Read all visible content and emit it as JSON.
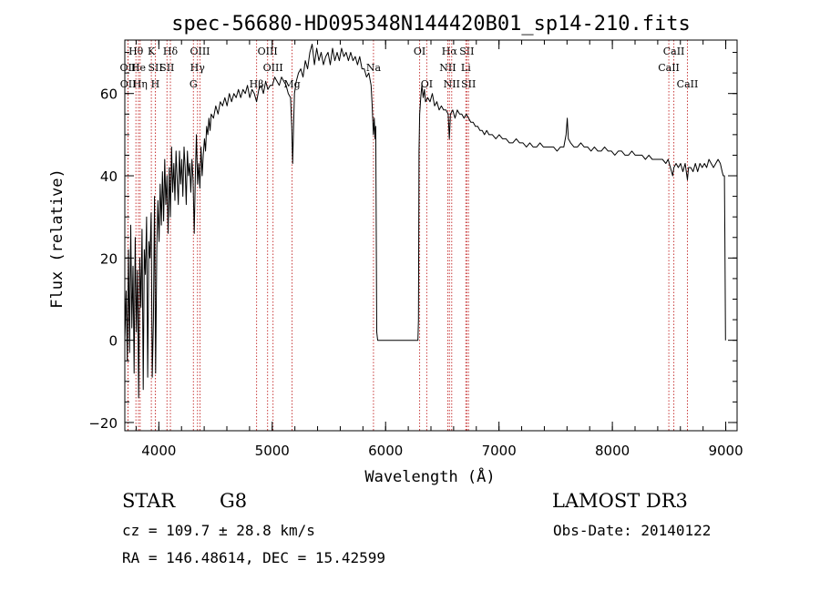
{
  "chart_data": {
    "type": "line",
    "title": "spec-56680-HD095348N144420B01_sp14-210.fits",
    "xlabel": "Wavelength (Å)",
    "ylabel": "Flux (relative)",
    "xlim": [
      3700,
      9100
    ],
    "ylim": [
      -22,
      73
    ],
    "x_ticks": [
      4000,
      5000,
      6000,
      7000,
      8000,
      9000
    ],
    "y_ticks": [
      -20,
      0,
      20,
      40,
      60
    ],
    "x_minor_step": 200,
    "y_minor_step": 5,
    "series": [
      {
        "name": "flux",
        "points": [
          [
            3700,
            0
          ],
          [
            3712,
            12
          ],
          [
            3722,
            -5
          ],
          [
            3732,
            22
          ],
          [
            3742,
            -3
          ],
          [
            3752,
            28
          ],
          [
            3762,
            3
          ],
          [
            3772,
            18
          ],
          [
            3782,
            -8
          ],
          [
            3792,
            25
          ],
          [
            3802,
            2
          ],
          [
            3812,
            17
          ],
          [
            3822,
            -14
          ],
          [
            3832,
            20
          ],
          [
            3842,
            8
          ],
          [
            3852,
            27
          ],
          [
            3862,
            -12
          ],
          [
            3872,
            22
          ],
          [
            3882,
            16
          ],
          [
            3892,
            30
          ],
          [
            3902,
            -9
          ],
          [
            3912,
            24
          ],
          [
            3922,
            20
          ],
          [
            3932,
            31
          ],
          [
            3942,
            -9
          ],
          [
            3952,
            5
          ],
          [
            3962,
            35
          ],
          [
            3972,
            -8
          ],
          [
            3982,
            22
          ],
          [
            3992,
            34
          ],
          [
            4002,
            24
          ],
          [
            4012,
            38
          ],
          [
            4022,
            28
          ],
          [
            4032,
            41
          ],
          [
            4042,
            29
          ],
          [
            4052,
            44
          ],
          [
            4062,
            33
          ],
          [
            4072,
            40
          ],
          [
            4082,
            26
          ],
          [
            4092,
            42
          ],
          [
            4102,
            30
          ],
          [
            4112,
            47
          ],
          [
            4122,
            36
          ],
          [
            4132,
            43
          ],
          [
            4142,
            34
          ],
          [
            4152,
            46
          ],
          [
            4162,
            39
          ],
          [
            4172,
            33
          ],
          [
            4182,
            46
          ],
          [
            4192,
            38
          ],
          [
            4202,
            44
          ],
          [
            4212,
            35
          ],
          [
            4222,
            47
          ],
          [
            4232,
            42
          ],
          [
            4242,
            33
          ],
          [
            4252,
            46
          ],
          [
            4262,
            40
          ],
          [
            4272,
            43
          ],
          [
            4282,
            36
          ],
          [
            4292,
            44
          ],
          [
            4302,
            39
          ],
          [
            4312,
            26
          ],
          [
            4322,
            40
          ],
          [
            4332,
            50
          ],
          [
            4342,
            38
          ],
          [
            4352,
            43
          ],
          [
            4362,
            37
          ],
          [
            4372,
            47
          ],
          [
            4382,
            40
          ],
          [
            4392,
            45
          ],
          [
            4402,
            49
          ],
          [
            4412,
            46
          ],
          [
            4422,
            52
          ],
          [
            4432,
            50
          ],
          [
            4442,
            54
          ],
          [
            4452,
            51
          ],
          [
            4462,
            55
          ],
          [
            4482,
            54
          ],
          [
            4502,
            57
          ],
          [
            4522,
            55
          ],
          [
            4542,
            58
          ],
          [
            4562,
            57
          ],
          [
            4582,
            59
          ],
          [
            4602,
            57
          ],
          [
            4622,
            60
          ],
          [
            4642,
            58
          ],
          [
            4662,
            60
          ],
          [
            4682,
            59
          ],
          [
            4702,
            61
          ],
          [
            4722,
            59
          ],
          [
            4742,
            61
          ],
          [
            4762,
            60
          ],
          [
            4782,
            62
          ],
          [
            4802,
            59
          ],
          [
            4822,
            61
          ],
          [
            4842,
            60
          ],
          [
            4862,
            58
          ],
          [
            4882,
            61
          ],
          [
            4902,
            62
          ],
          [
            4922,
            60
          ],
          [
            4942,
            63
          ],
          [
            4962,
            61
          ],
          [
            4982,
            62
          ],
          [
            5002,
            62
          ],
          [
            5022,
            64
          ],
          [
            5042,
            63
          ],
          [
            5062,
            62
          ],
          [
            5082,
            64
          ],
          [
            5102,
            63
          ],
          [
            5122,
            62
          ],
          [
            5142,
            60
          ],
          [
            5162,
            59
          ],
          [
            5172,
            52
          ],
          [
            5180,
            43
          ],
          [
            5188,
            52
          ],
          [
            5196,
            60
          ],
          [
            5212,
            63
          ],
          [
            5232,
            65
          ],
          [
            5252,
            66
          ],
          [
            5272,
            64
          ],
          [
            5292,
            68
          ],
          [
            5312,
            66
          ],
          [
            5332,
            70
          ],
          [
            5352,
            72
          ],
          [
            5372,
            67
          ],
          [
            5392,
            71
          ],
          [
            5412,
            68
          ],
          [
            5432,
            70
          ],
          [
            5452,
            67
          ],
          [
            5472,
            69
          ],
          [
            5492,
            70
          ],
          [
            5512,
            67
          ],
          [
            5532,
            71
          ],
          [
            5552,
            68
          ],
          [
            5572,
            70
          ],
          [
            5592,
            68
          ],
          [
            5612,
            71
          ],
          [
            5632,
            69
          ],
          [
            5652,
            70
          ],
          [
            5672,
            68
          ],
          [
            5692,
            70
          ],
          [
            5712,
            68
          ],
          [
            5732,
            69
          ],
          [
            5752,
            67
          ],
          [
            5772,
            69
          ],
          [
            5792,
            66
          ],
          [
            5812,
            66
          ],
          [
            5832,
            64
          ],
          [
            5852,
            65
          ],
          [
            5872,
            62
          ],
          [
            5882,
            57
          ],
          [
            5892,
            50
          ],
          [
            5900,
            54
          ],
          [
            5907,
            49
          ],
          [
            5913,
            52
          ],
          [
            5922,
            2
          ],
          [
            5930,
            0
          ],
          [
            6000,
            0
          ],
          [
            6100,
            0
          ],
          [
            6200,
            0
          ],
          [
            6285,
            0
          ],
          [
            6290,
            5
          ],
          [
            6295,
            46
          ],
          [
            6300,
            55
          ],
          [
            6310,
            59
          ],
          [
            6320,
            62
          ],
          [
            6332,
            59
          ],
          [
            6342,
            61
          ],
          [
            6352,
            58
          ],
          [
            6372,
            59
          ],
          [
            6392,
            58
          ],
          [
            6412,
            60
          ],
          [
            6432,
            57
          ],
          [
            6452,
            58
          ],
          [
            6472,
            56
          ],
          [
            6492,
            57
          ],
          [
            6512,
            56
          ],
          [
            6532,
            56
          ],
          [
            6552,
            55
          ],
          [
            6562,
            49
          ],
          [
            6572,
            55
          ],
          [
            6592,
            56
          ],
          [
            6612,
            54
          ],
          [
            6632,
            56
          ],
          [
            6652,
            55
          ],
          [
            6672,
            55
          ],
          [
            6692,
            54
          ],
          [
            6712,
            55
          ],
          [
            6732,
            54
          ],
          [
            6752,
            53
          ],
          [
            6772,
            53
          ],
          [
            6792,
            52
          ],
          [
            6812,
            52
          ],
          [
            6832,
            51
          ],
          [
            6852,
            51
          ],
          [
            6872,
            50
          ],
          [
            6892,
            51
          ],
          [
            6912,
            50
          ],
          [
            6942,
            50
          ],
          [
            6972,
            49
          ],
          [
            7002,
            50
          ],
          [
            7032,
            49
          ],
          [
            7062,
            49
          ],
          [
            7092,
            48
          ],
          [
            7122,
            48
          ],
          [
            7152,
            49
          ],
          [
            7182,
            48
          ],
          [
            7212,
            48
          ],
          [
            7242,
            47
          ],
          [
            7272,
            48
          ],
          [
            7302,
            47
          ],
          [
            7332,
            47
          ],
          [
            7362,
            48
          ],
          [
            7392,
            47
          ],
          [
            7422,
            47
          ],
          [
            7452,
            47
          ],
          [
            7482,
            47
          ],
          [
            7512,
            46
          ],
          [
            7542,
            47
          ],
          [
            7572,
            47
          ],
          [
            7592,
            50
          ],
          [
            7602,
            54
          ],
          [
            7612,
            49
          ],
          [
            7632,
            48
          ],
          [
            7662,
            47
          ],
          [
            7692,
            47
          ],
          [
            7722,
            48
          ],
          [
            7752,
            47
          ],
          [
            7782,
            47
          ],
          [
            7812,
            46
          ],
          [
            7842,
            47
          ],
          [
            7872,
            46
          ],
          [
            7902,
            46
          ],
          [
            7932,
            47
          ],
          [
            7962,
            46
          ],
          [
            7992,
            46
          ],
          [
            8022,
            45
          ],
          [
            8052,
            46
          ],
          [
            8082,
            46
          ],
          [
            8112,
            45
          ],
          [
            8142,
            45
          ],
          [
            8172,
            46
          ],
          [
            8202,
            45
          ],
          [
            8232,
            45
          ],
          [
            8262,
            45
          ],
          [
            8292,
            44
          ],
          [
            8322,
            45
          ],
          [
            8352,
            44
          ],
          [
            8382,
            44
          ],
          [
            8412,
            44
          ],
          [
            8442,
            44
          ],
          [
            8472,
            43
          ],
          [
            8492,
            44
          ],
          [
            8512,
            42
          ],
          [
            8532,
            40
          ],
          [
            8542,
            42
          ],
          [
            8562,
            43
          ],
          [
            8582,
            42
          ],
          [
            8602,
            43
          ],
          [
            8622,
            41
          ],
          [
            8642,
            43
          ],
          [
            8662,
            39
          ],
          [
            8672,
            42
          ],
          [
            8692,
            42
          ],
          [
            8712,
            41
          ],
          [
            8732,
            43
          ],
          [
            8752,
            41
          ],
          [
            8772,
            43
          ],
          [
            8792,
            42
          ],
          [
            8812,
            43
          ],
          [
            8832,
            42
          ],
          [
            8852,
            44
          ],
          [
            8872,
            43
          ],
          [
            8892,
            42
          ],
          [
            8912,
            43
          ],
          [
            8932,
            44
          ],
          [
            8952,
            43
          ],
          [
            8968,
            41
          ],
          [
            8978,
            40
          ],
          [
            8988,
            40
          ],
          [
            8992,
            25
          ],
          [
            8998,
            0
          ]
        ]
      }
    ],
    "line_markers": [
      {
        "label": "Hθ",
        "wavelength": 3798,
        "row": 0
      },
      {
        "label": "OII",
        "wavelength": 3727,
        "row": 1
      },
      {
        "label": "OII",
        "wavelength": 3729,
        "row": 2
      },
      {
        "label": "He",
        "wavelength": 3820,
        "row": 1
      },
      {
        "label": "Hη",
        "wavelength": 3835,
        "row": 2
      },
      {
        "label": "K",
        "wavelength": 3934,
        "row": 0
      },
      {
        "label": "SII",
        "wavelength": 3970,
        "row": 1
      },
      {
        "label": "H",
        "wavelength": 3969,
        "row": 2
      },
      {
        "label": "Hδ",
        "wavelength": 4102,
        "row": 0
      },
      {
        "label": "SII",
        "wavelength": 4072,
        "row": 1
      },
      {
        "label": "OIII",
        "wavelength": 4363,
        "row": 0
      },
      {
        "label": "Hγ",
        "wavelength": 4341,
        "row": 1
      },
      {
        "label": "G",
        "wavelength": 4305,
        "row": 2
      },
      {
        "label": "OIII",
        "wavelength": 4959,
        "row": 0
      },
      {
        "label": "OIII",
        "wavelength": 5007,
        "row": 1
      },
      {
        "label": "Hβ",
        "wavelength": 4862,
        "row": 2
      },
      {
        "label": "Mg",
        "wavelength": 5175,
        "row": 2
      },
      {
        "label": "Na",
        "wavelength": 5893,
        "row": 1
      },
      {
        "label": "OI",
        "wavelength": 6300,
        "row": 0
      },
      {
        "label": "OI",
        "wavelength": 6363,
        "row": 2
      },
      {
        "label": "Hα",
        "wavelength": 6563,
        "row": 0
      },
      {
        "label": "NII",
        "wavelength": 6548,
        "row": 1
      },
      {
        "label": "NII",
        "wavelength": 6583,
        "row": 2
      },
      {
        "label": "SII",
        "wavelength": 6716,
        "row": 0
      },
      {
        "label": "Li",
        "wavelength": 6708,
        "row": 1
      },
      {
        "label": "SII",
        "wavelength": 6731,
        "row": 2
      },
      {
        "label": "CaII",
        "wavelength": 8542,
        "row": 0
      },
      {
        "label": "CaII",
        "wavelength": 8498,
        "row": 1
      },
      {
        "label": "CaII",
        "wavelength": 8662,
        "row": 2
      }
    ],
    "colors": {
      "line": "#000000",
      "marker": "#c83c3c",
      "axis": "#000000",
      "background": "#ffffff"
    }
  },
  "info": {
    "object_class": "STAR",
    "subclass": "G8",
    "survey": "LAMOST DR3",
    "cz": "cz = 109.7 ± 28.8 km/s",
    "obs_date": "Obs-Date: 20140122",
    "coords": "RA = 146.48614, DEC =  15.42599"
  }
}
